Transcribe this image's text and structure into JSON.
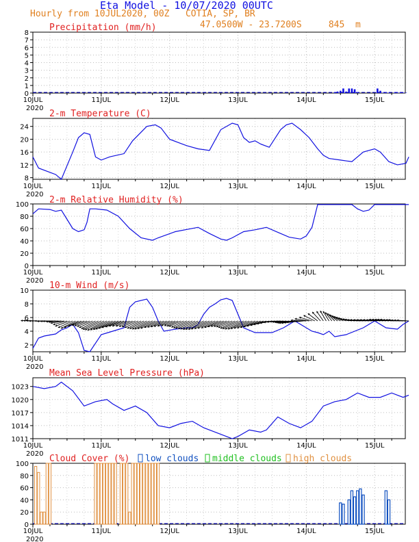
{
  "header": {
    "title": "Eta Model - 10/07/2020 00UTC",
    "subtitle": "Hourly from 10JUL2020, 00Z   COTIA, SP, BR",
    "location": "47.0500W - 23.7200S     845  m"
  },
  "x_axis": {
    "day_labels": [
      "10JUL",
      "11JUL",
      "12JUL",
      "13JUL",
      "14JUL",
      "15JUL"
    ],
    "year_label": "2020",
    "range_hours": [
      0,
      132
    ]
  },
  "colors": {
    "series": "#1010e0",
    "title": "#e02020",
    "header": "#e08020",
    "grid": "#bbbbbb",
    "high": "#e09040",
    "middle": "#20c020",
    "low": "#1050c0"
  },
  "chart_data": [
    {
      "type": "bar",
      "title": "Precipitation (mm/h)",
      "ylim": [
        0,
        8
      ],
      "yticks": [
        0,
        1,
        2,
        3,
        4,
        5,
        6,
        7,
        8
      ],
      "x_hours": [
        106,
        107,
        108,
        109,
        110,
        111,
        112,
        113,
        114,
        115,
        116,
        117,
        118,
        119,
        120,
        121,
        122,
        123,
        124,
        125,
        126,
        127,
        128,
        129,
        130,
        131
      ],
      "values": [
        0.1,
        0.2,
        0.3,
        0.6,
        0.2,
        0.6,
        0.6,
        0.5,
        0.05,
        0.0,
        0.0,
        0.0,
        0.0,
        0.0,
        0.0,
        0.6,
        0.3,
        0.05,
        0.05,
        0.05,
        0.0,
        0.05,
        0.05,
        0.05,
        0.05,
        0.05
      ]
    },
    {
      "type": "line",
      "title": "2-m Temperature (C)",
      "ylim": [
        7.5,
        26.5
      ],
      "yticks": [
        8,
        12,
        16,
        20,
        24
      ],
      "x": [
        0,
        2,
        8,
        10,
        14,
        16,
        18,
        20,
        22,
        24,
        27,
        32,
        35,
        40,
        43,
        45,
        48,
        51,
        54,
        58,
        62,
        66,
        70,
        72,
        74,
        76,
        78,
        80,
        83,
        87,
        89,
        91,
        94,
        97,
        100,
        102,
        104,
        108,
        112,
        116,
        118,
        120,
        122,
        125,
        128,
        131,
        132
      ],
      "y": [
        14.5,
        11,
        9,
        7.5,
        16,
        20.5,
        22,
        21.5,
        14.5,
        13.5,
        14.5,
        15.5,
        19.5,
        24,
        24.5,
        23.5,
        20,
        19,
        18,
        17,
        16.5,
        23,
        25,
        24.5,
        20.5,
        19,
        19.5,
        18.5,
        17.5,
        23,
        24.5,
        25,
        23,
        20.5,
        17,
        15,
        14,
        13.5,
        13,
        16,
        16.5,
        17,
        16,
        13,
        12,
        12.5,
        14.5
      ]
    },
    {
      "type": "line",
      "title": "2-m Relative Humidity (%)",
      "ylim": [
        0,
        100
      ],
      "yticks": [
        0,
        20,
        40,
        60,
        80,
        100
      ],
      "x": [
        0,
        2,
        6,
        8,
        10,
        12,
        14,
        16,
        18,
        19,
        20,
        22,
        26,
        30,
        34,
        38,
        42,
        44,
        50,
        58,
        62,
        66,
        68,
        70,
        74,
        78,
        82,
        86,
        90,
        94,
        96,
        98,
        100,
        104,
        108,
        110,
        112,
        114,
        116,
        118,
        120,
        122,
        126,
        132
      ],
      "y": [
        84,
        92,
        91,
        88,
        90,
        75,
        60,
        55,
        58,
        70,
        92,
        92,
        90,
        80,
        60,
        45,
        41,
        45,
        55,
        62,
        52,
        43,
        41,
        45,
        55,
        58,
        62,
        54,
        46,
        43,
        48,
        62,
        99,
        99,
        99,
        99,
        99,
        92,
        88,
        90,
        99,
        99,
        99,
        99
      ]
    },
    {
      "type": "line",
      "title": "10-m Wind (m/s)",
      "ylim": [
        1,
        10
      ],
      "yticks": [
        2,
        4,
        6,
        8,
        10
      ],
      "x": [
        0,
        2,
        4,
        8,
        10,
        12,
        14,
        16,
        18,
        20,
        24,
        28,
        32,
        34,
        36,
        40,
        42,
        44,
        46,
        50,
        54,
        56,
        58,
        60,
        62,
        64,
        66,
        68,
        70,
        72,
        74,
        78,
        84,
        88,
        92,
        96,
        98,
        100,
        102,
        104,
        106,
        110,
        116,
        120,
        124,
        128,
        130,
        132
      ],
      "y": [
        1.5,
        3,
        3.3,
        3.6,
        4.2,
        4.5,
        5,
        3.8,
        1.2,
        1,
        3.5,
        4,
        4.5,
        7.5,
        8.3,
        8.7,
        7.5,
        5.5,
        4,
        4.3,
        4.5,
        4.5,
        5,
        6.5,
        7.5,
        8,
        8.6,
        8.8,
        8.5,
        6.5,
        4.5,
        3.8,
        3.8,
        4.5,
        5.5,
        4.5,
        4,
        3.8,
        3.5,
        4,
        3.2,
        3.5,
        4.5,
        5.5,
        4.5,
        4.3,
        5,
        5.5
      ],
      "arrow_hours": [
        0,
        1,
        2,
        3,
        4,
        5,
        6,
        7,
        8,
        9,
        10,
        11,
        12,
        13,
        14,
        15,
        16,
        17,
        18,
        19,
        20,
        21,
        22,
        23,
        24,
        25,
        26,
        27,
        28,
        29,
        30,
        31,
        32,
        33,
        34,
        35,
        36,
        37,
        38,
        39,
        40,
        41,
        42,
        43,
        44,
        45,
        46,
        47,
        48,
        49,
        50,
        51,
        52,
        53,
        54,
        55,
        56,
        57,
        58,
        59,
        60,
        61,
        62,
        63,
        64,
        65,
        66,
        67,
        68,
        69,
        70,
        71,
        72,
        73,
        74,
        75,
        76,
        77,
        78,
        79,
        80,
        81,
        82,
        83,
        84,
        85,
        86,
        87,
        88,
        89,
        90,
        91,
        92,
        93,
        94,
        95,
        96,
        97,
        98,
        99,
        100,
        101,
        102,
        103,
        104,
        105,
        106,
        107,
        108,
        109,
        110,
        111,
        112,
        113,
        114,
        115,
        116,
        117,
        118,
        119,
        120,
        121,
        122,
        123,
        124,
        125,
        126,
        127,
        128,
        129,
        130,
        131,
        132
      ],
      "arrow_u": [
        -3.2,
        -3.3,
        -3.3,
        -3.3,
        -3.4,
        -3.3,
        -3.4,
        -3.3,
        -3.4,
        -3.3,
        -3.4,
        -3.6,
        -3.7,
        -3.9,
        -3.9,
        -3.9,
        -3.8,
        -3.5,
        -3.2,
        -3.3,
        -3.4,
        -3.6,
        -3.8,
        -4.1,
        -4.3,
        -4.4,
        -4.4,
        -4.4,
        -4.5,
        -4.5,
        -4.4,
        -4.2,
        -4.0,
        -3.9,
        -3.7,
        -3.6,
        -3.6,
        -3.6,
        -3.7,
        -3.8,
        -3.9,
        -4.0,
        -4.0,
        -3.9,
        -3.7,
        -3.6,
        -3.5,
        -3.4,
        -3.2,
        -3.0,
        -2.9,
        -3.0,
        -3.2,
        -3.3,
        -3.5,
        -3.7,
        -3.8,
        -3.9,
        -4.0,
        -4.1,
        -4.1,
        -4.1,
        -4.0,
        -3.9,
        -3.7,
        -3.6,
        -3.5,
        -3.4,
        -3.4,
        -3.5,
        -3.7,
        -3.9,
        -4.1,
        -4.2,
        -4.2,
        -4.2,
        -4.1,
        -4.0,
        -3.9,
        -3.8,
        -3.7,
        -3.5,
        -3.4,
        -3.3,
        -3.2,
        -3.0,
        -2.9,
        -2.9,
        -3.0,
        -3.1,
        -3.3,
        -3.5,
        -3.6,
        -3.6,
        -3.7,
        -3.9,
        -4.1,
        -3.8,
        -3.4,
        -3.0,
        -2.6,
        -2.2,
        -1.8,
        -1.6,
        -1.6,
        -1.8,
        -2.0,
        -2.2,
        -2.4,
        -2.6,
        -2.8,
        -3.0,
        -3.2,
        -3.3,
        -3.4,
        -3.5,
        -3.5,
        -3.4,
        -3.3,
        -3.2,
        -3.1,
        -3.0,
        -3.0,
        -3.0,
        -3.0,
        -3.1,
        -3.1,
        -3.1,
        -3.1,
        -3.2,
        -3.2,
        -3.2,
        -3.2
      ],
      "arrow_v": [
        0.1,
        0.1,
        0.1,
        0.0,
        0.0,
        0.0,
        -0.1,
        -0.1,
        -0.1,
        -0.2,
        -0.3,
        -0.6,
        -1.0,
        -1.4,
        -1.8,
        -2.0,
        -1.8,
        -1.4,
        -1.2,
        -1.3,
        -1.5,
        -1.8,
        -2.1,
        -2.3,
        -2.4,
        -2.5,
        -2.4,
        -2.3,
        -2.2,
        -2.0,
        -1.8,
        -1.6,
        -1.4,
        -1.4,
        -1.4,
        -1.5,
        -1.6,
        -1.8,
        -2.0,
        -2.1,
        -2.2,
        -2.2,
        -2.1,
        -2.0,
        -1.8,
        -1.7,
        -1.6,
        -1.5,
        -1.4,
        -1.3,
        -1.3,
        -1.4,
        -1.5,
        -1.7,
        -1.9,
        -2.0,
        -2.1,
        -2.2,
        -2.3,
        -2.3,
        -2.3,
        -2.2,
        -2.1,
        -2.0,
        -1.9,
        -1.8,
        -1.6,
        -1.5,
        -1.5,
        -1.6,
        -1.8,
        -2.0,
        -2.1,
        -2.2,
        -2.2,
        -2.1,
        -2.0,
        -1.9,
        -1.8,
        -1.6,
        -1.4,
        -1.2,
        -1.0,
        -0.8,
        -0.6,
        -0.4,
        -0.3,
        -0.2,
        -0.3,
        -0.4,
        -0.5,
        -0.6,
        -0.6,
        -0.5,
        -0.4,
        -0.3,
        0.2,
        0.6,
        1.0,
        1.5,
        2.0,
        2.4,
        2.6,
        2.7,
        2.6,
        2.3,
        2.0,
        1.7,
        1.4,
        1.2,
        1.0,
        0.8,
        0.6,
        0.5,
        0.4,
        0.3,
        0.3,
        0.3,
        0.3,
        0.3,
        0.3,
        0.3,
        0.4,
        0.4,
        0.4,
        0.4,
        0.4,
        0.3,
        0.3,
        0.3,
        0.2,
        0.2,
        0.2
      ]
    },
    {
      "type": "line",
      "title": "Mean Sea Level Pressure (hPa)",
      "ylim": [
        1011,
        1025
      ],
      "yticks": [
        1011,
        1014,
        1017,
        1020,
        1023
      ],
      "x": [
        0,
        4,
        8,
        10,
        14,
        18,
        22,
        26,
        28,
        32,
        36,
        40,
        44,
        48,
        52,
        56,
        60,
        64,
        68,
        70,
        72,
        76,
        80,
        82,
        86,
        90,
        94,
        98,
        102,
        106,
        110,
        114,
        118,
        122,
        126,
        128,
        130,
        132
      ],
      "y": [
        1023,
        1022.5,
        1023,
        1024,
        1022,
        1018.5,
        1019.5,
        1020,
        1019,
        1017.5,
        1018.5,
        1017,
        1014,
        1013.5,
        1014.5,
        1015,
        1013.5,
        1012.5,
        1011.5,
        1011,
        1011.5,
        1013,
        1012.5,
        1013,
        1016,
        1014.5,
        1013.5,
        1015,
        1018.5,
        1019.5,
        1020,
        1021.5,
        1020.5,
        1020.5,
        1021.5,
        1021,
        1020.5,
        1021
      ]
    },
    {
      "type": "bar",
      "title": "Cloud Cover (%)",
      "legend": [
        "low clouds",
        "middle clouds",
        "high clouds"
      ],
      "ylim": [
        0,
        100
      ],
      "yticks": [
        0,
        20,
        40,
        60,
        80,
        100
      ],
      "high_x": [
        1,
        2,
        3,
        4,
        5,
        6,
        22,
        23,
        24,
        25,
        26,
        27,
        28,
        29,
        31,
        32,
        33,
        34,
        35,
        36,
        37,
        38,
        39,
        40,
        41,
        42,
        43,
        44
      ],
      "high_values": [
        95,
        85,
        20,
        20,
        100,
        100,
        100,
        100,
        100,
        100,
        100,
        100,
        100,
        100,
        100,
        100,
        100,
        20,
        100,
        100,
        100,
        100,
        100,
        100,
        100,
        100,
        100,
        100
      ],
      "low_x": [
        108,
        109,
        110,
        111,
        112,
        113,
        114,
        115,
        116,
        117,
        118,
        124,
        125
      ],
      "low_values": [
        35,
        33,
        0,
        40,
        55,
        45,
        55,
        58,
        48,
        0,
        0,
        55,
        40
      ]
    }
  ]
}
